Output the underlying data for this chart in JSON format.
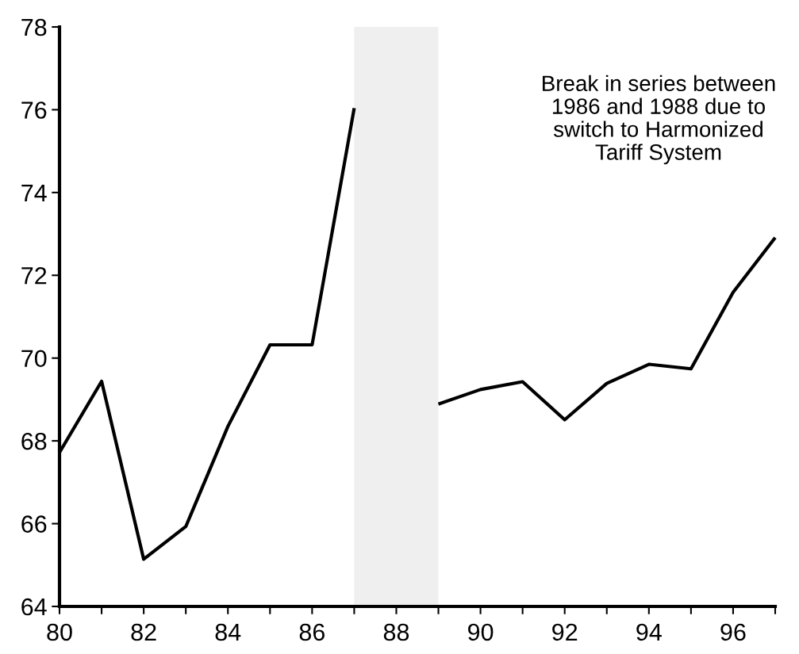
{
  "chart_data": {
    "type": "line",
    "x": [
      1980,
      1981,
      1982,
      1983,
      1984,
      1985,
      1986,
      1987,
      1988,
      1989,
      1990,
      1991,
      1992,
      1993,
      1994,
      1995,
      1996,
      1997
    ],
    "series": [
      {
        "color": "#000000",
        "values": [
          67.72,
          69.44,
          65.14,
          65.93,
          68.35,
          70.32,
          70.32,
          76.04,
          null,
          68.89,
          69.24,
          69.43,
          68.51,
          69.39,
          69.85,
          69.74,
          71.59,
          72.91
        ]
      }
    ],
    "xlim": [
      1980,
      1997
    ],
    "xticks": [
      {
        "value": 1980,
        "label": "80"
      },
      {
        "value": 1981,
        "label": null
      },
      {
        "value": 1982,
        "label": "82"
      },
      {
        "value": 1983,
        "label": null
      },
      {
        "value": 1984,
        "label": "84"
      },
      {
        "value": 1985,
        "label": null
      },
      {
        "value": 1986,
        "label": "86"
      },
      {
        "value": 1987,
        "label": null
      },
      {
        "value": 1988,
        "label": "88"
      },
      {
        "value": 1989,
        "label": null
      },
      {
        "value": 1990,
        "label": "90"
      },
      {
        "value": 1991,
        "label": null
      },
      {
        "value": 1992,
        "label": "92"
      },
      {
        "value": 1993,
        "label": null
      },
      {
        "value": 1994,
        "label": "94"
      },
      {
        "value": 1995,
        "label": null
      },
      {
        "value": 1996,
        "label": "96"
      },
      {
        "value": 1997,
        "label": null
      }
    ],
    "ylim": [
      64,
      78
    ],
    "yticks": [
      64,
      66,
      68,
      70,
      72,
      74,
      76,
      78
    ],
    "bands": [
      {
        "axis": "x",
        "from": 1987,
        "to": 1989,
        "color": "#efefef"
      }
    ],
    "annotations": [
      "Break in series between\n1986 and 1988 due to\nswitch to Harmonized\nTariff System"
    ],
    "grid": false,
    "marker": "none",
    "line_style": "solid"
  }
}
